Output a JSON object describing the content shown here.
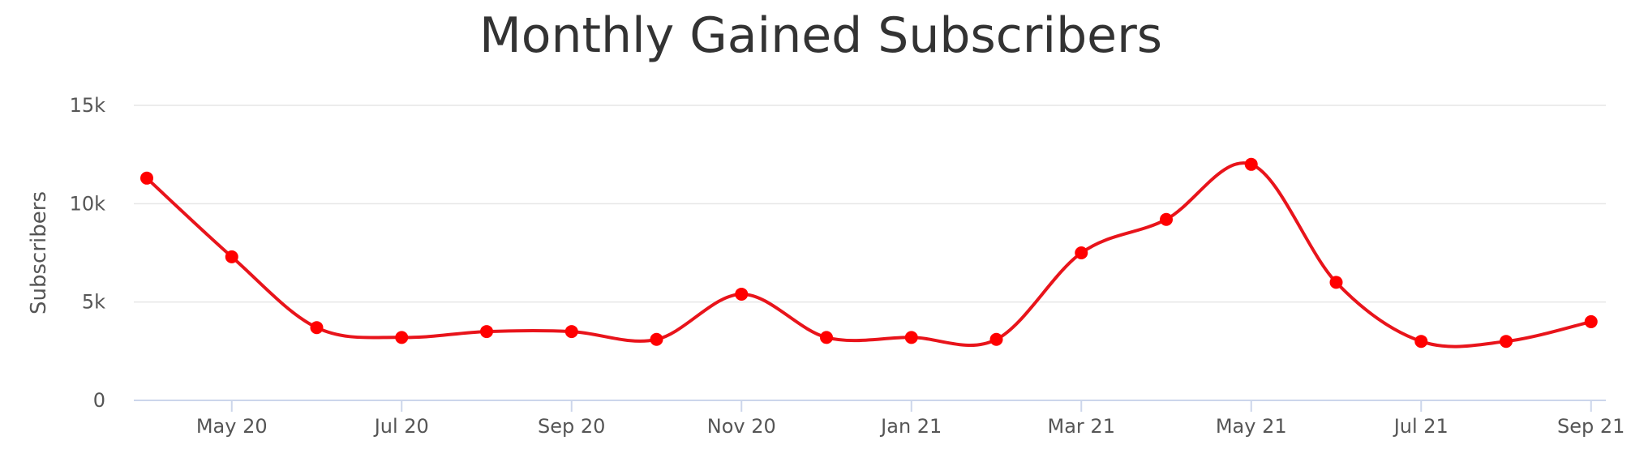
{
  "chart_data": {
    "type": "line",
    "title": "Monthly Gained Subscribers",
    "xlabel": "",
    "ylabel": "Subscribers",
    "x": [
      "2020-04",
      "2020-05",
      "2020-06",
      "2020-07",
      "2020-08",
      "2020-09",
      "2020-10",
      "2020-11",
      "2020-12",
      "2021-01",
      "2021-02",
      "2021-03",
      "2021-04",
      "2021-05",
      "2021-06",
      "2021-07",
      "2021-08",
      "2021-09"
    ],
    "series": [
      {
        "values": [
          11300,
          7300,
          3700,
          3200,
          3500,
          3500,
          3100,
          5400,
          3200,
          3200,
          3100,
          7500,
          9200,
          12000,
          6000,
          3000,
          3000,
          4000
        ]
      }
    ],
    "ylim": [
      0,
      15000
    ],
    "yticks": [
      {
        "value": 0,
        "label": "0"
      },
      {
        "value": 5000,
        "label": "5k"
      },
      {
        "value": 10000,
        "label": "10k"
      },
      {
        "value": 15000,
        "label": "15k"
      }
    ],
    "xticks": [
      {
        "x": "2020-05",
        "label": "May 20"
      },
      {
        "x": "2020-07",
        "label": "Jul 20"
      },
      {
        "x": "2020-09",
        "label": "Sep 20"
      },
      {
        "x": "2020-11",
        "label": "Nov 20"
      },
      {
        "x": "2021-01",
        "label": "Jan 21"
      },
      {
        "x": "2021-03",
        "label": "Mar 21"
      },
      {
        "x": "2021-05",
        "label": "May 21"
      },
      {
        "x": "2021-07",
        "label": "Jul 21"
      },
      {
        "x": "2021-09",
        "label": "Sep 21"
      }
    ],
    "grid": true,
    "line_color": "#e8141b",
    "marker_color": "#ff0000",
    "grid_color": "#e6e6e6",
    "axis_color": "#ccd6eb"
  }
}
